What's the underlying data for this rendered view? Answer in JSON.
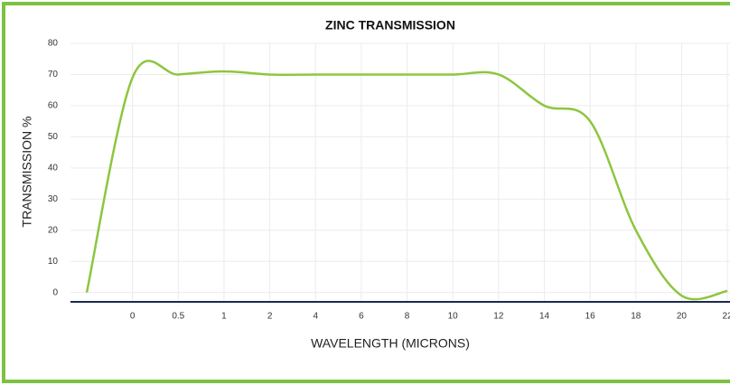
{
  "chart_data": {
    "type": "line",
    "title": "ZINC TRANSMISSION",
    "x_label": "WAVELENGTH (MICRONS)",
    "y_label": "TRANSMISSION %",
    "categories": [
      null,
      "0",
      "0.5",
      "1",
      "2",
      "4",
      "6",
      "8",
      "10",
      "12",
      "14",
      "16",
      "18",
      "20",
      "22"
    ],
    "series": [
      {
        "name": "Zinc",
        "color": "#8dc63f",
        "values": [
          0,
          69,
          70,
          71,
          70,
          70,
          70,
          70,
          70,
          70,
          60,
          55,
          20,
          -1,
          0.5
        ]
      }
    ],
    "ylim": [
      -3,
      80
    ],
    "yticks": [
      0,
      10,
      20,
      30,
      40,
      50,
      60,
      70,
      80
    ],
    "grid": true,
    "frame_color": "#7dc242",
    "axis_color": "#1b2a4e"
  }
}
